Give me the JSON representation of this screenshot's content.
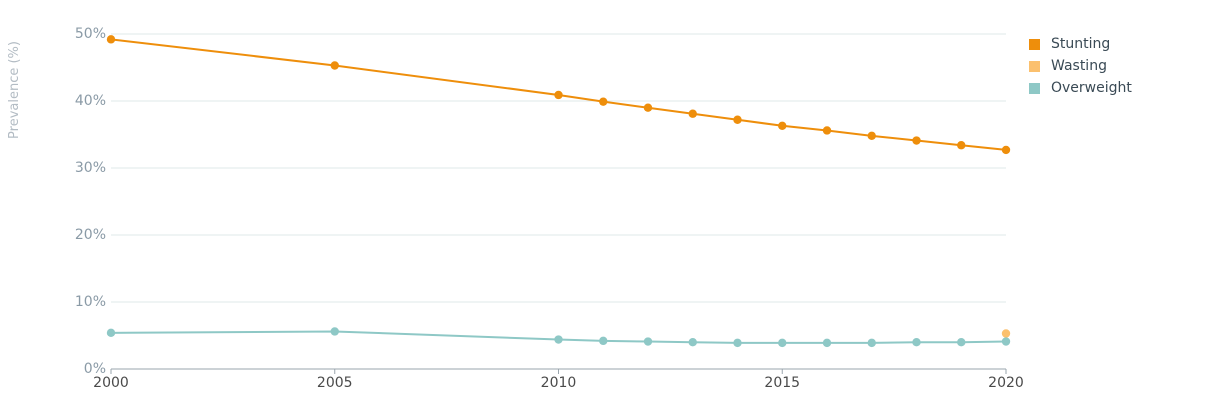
{
  "chart_data": {
    "type": "line",
    "ylabel": "Prevalence (%)",
    "xlabel": "",
    "xlim": [
      2000,
      2020
    ],
    "ylim": [
      0,
      50
    ],
    "x_ticks": [
      "2000",
      "2005",
      "2010",
      "2015",
      "2020"
    ],
    "y_ticks": [
      "0%",
      "10%",
      "20%",
      "30%",
      "40%",
      "50%"
    ],
    "grid": "horizontal",
    "legend_position": "top-right",
    "series": [
      {
        "name": "Stunting",
        "color": "#ee8e0b",
        "points": [
          {
            "x": 2000,
            "y": 49.2
          },
          {
            "x": 2005,
            "y": 45.3
          },
          {
            "x": 2010,
            "y": 40.9
          },
          {
            "x": 2011,
            "y": 39.9
          },
          {
            "x": 2012,
            "y": 39.0
          },
          {
            "x": 2013,
            "y": 38.1
          },
          {
            "x": 2014,
            "y": 37.2
          },
          {
            "x": 2015,
            "y": 36.3
          },
          {
            "x": 2016,
            "y": 35.6
          },
          {
            "x": 2017,
            "y": 34.8
          },
          {
            "x": 2018,
            "y": 34.1
          },
          {
            "x": 2019,
            "y": 33.4
          },
          {
            "x": 2020,
            "y": 32.7
          }
        ]
      },
      {
        "name": "Wasting",
        "color": "#fbc06e",
        "points": [
          {
            "x": 2020,
            "y": 5.3
          }
        ]
      },
      {
        "name": "Overweight",
        "color": "#8ec8c6",
        "points": [
          {
            "x": 2000,
            "y": 5.4
          },
          {
            "x": 2005,
            "y": 5.6
          },
          {
            "x": 2010,
            "y": 4.4
          },
          {
            "x": 2011,
            "y": 4.2
          },
          {
            "x": 2012,
            "y": 4.1
          },
          {
            "x": 2013,
            "y": 4.0
          },
          {
            "x": 2014,
            "y": 3.9
          },
          {
            "x": 2015,
            "y": 3.9
          },
          {
            "x": 2016,
            "y": 3.9
          },
          {
            "x": 2017,
            "y": 3.9
          },
          {
            "x": 2018,
            "y": 4.0
          },
          {
            "x": 2019,
            "y": 4.0
          },
          {
            "x": 2020,
            "y": 4.1
          }
        ]
      }
    ]
  }
}
